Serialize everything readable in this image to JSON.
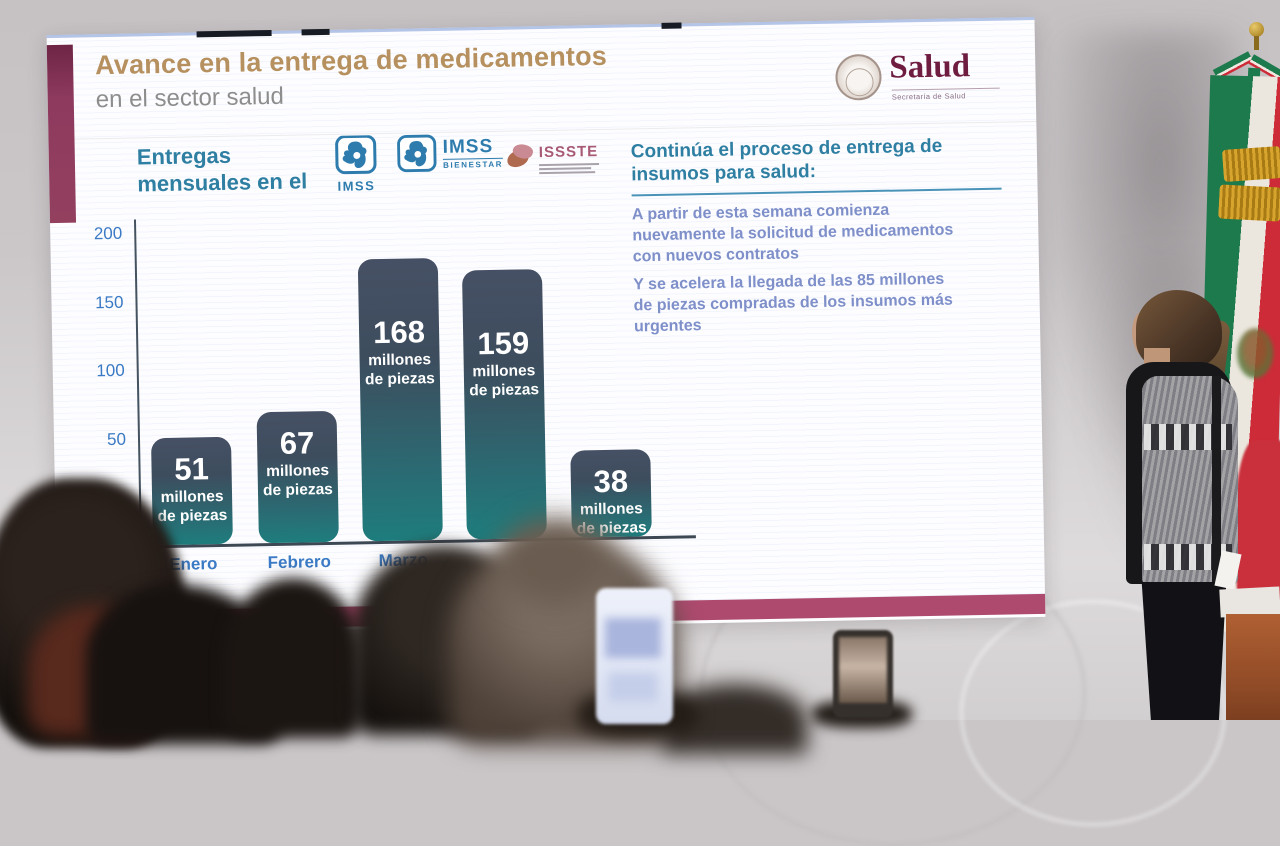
{
  "slide": {
    "title": "Avance en la entrega de medicamentos",
    "subtitle": "en el sector salud",
    "left_heading": "Entregas\nmensuales en el",
    "logos": {
      "imss": {
        "label": "IMSS"
      },
      "imss_bienestar": {
        "line1": "IMSS",
        "line2": "BIENESTAR"
      },
      "issste": {
        "label": "ISSSTE"
      },
      "salud": {
        "label": "Salud",
        "sub": "Secretaría de Salud"
      }
    },
    "right_panel": {
      "heading": "Continúa el proceso de entrega de\ninsumos para salud:",
      "para1": "A partir de esta semana comienza\nnuevamente la solicitud de medicamentos\ncon nuevos contratos",
      "para2": "Y se acelera la llegada de las 85 millones\nde piezas compradas de los insumos más\nurgentes"
    }
  },
  "chart_data": {
    "type": "bar",
    "title": "Entregas mensuales en el IMSS, IMSS Bienestar e ISSSTE",
    "categories": [
      "Enero",
      "Febrero",
      "Marzo",
      "",
      ""
    ],
    "values": [
      51,
      67,
      168,
      159,
      38
    ],
    "unit_lines": [
      "millones",
      "de piezas"
    ],
    "ylabel": "",
    "xlabel": "",
    "yticks": [
      50,
      100,
      150,
      200
    ],
    "ylim": [
      0,
      200
    ],
    "grid": false,
    "legend": null,
    "bar_color_top": "#465064",
    "bar_color_bottom": "#1e7d7d",
    "label_color": "#3b7ac4"
  },
  "colors": {
    "slide_accent_magenta": "#8e3a5f",
    "slide_bottom_bar": "#ad4a6e",
    "title_tan": "#b6915f",
    "subtitle_gray": "#8d8d8d",
    "teal_heading": "#2f7fa3",
    "body_periwinkle": "#7e8fc9",
    "salud_wine": "#6e1d41",
    "imss_blue": "#2e7cae",
    "issste_pink": "#a85a74",
    "flag_green": "#1d7a4c",
    "flag_red": "#ce2b38",
    "flag_gold": "#d7a42e"
  }
}
